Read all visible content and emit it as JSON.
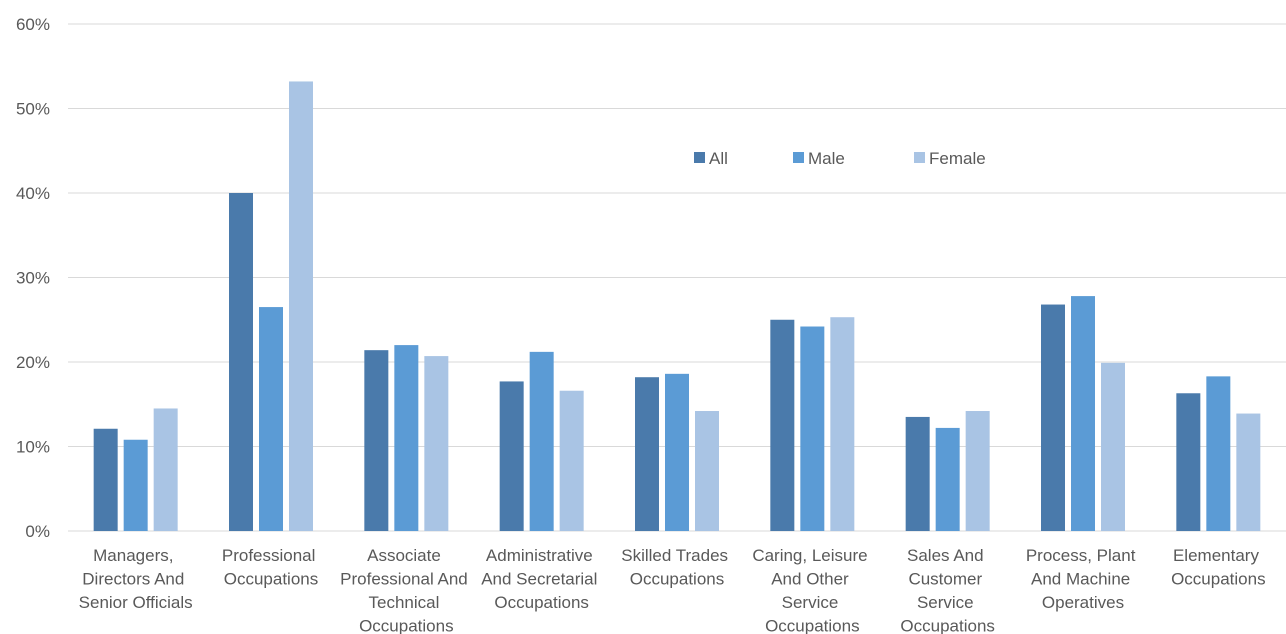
{
  "chart_data": {
    "type": "bar",
    "categories": [
      "Managers, Directors And Senior Officials",
      "Professional Occupations",
      "Associate Professional And Technical Occupations",
      "Administrative And Secretarial Occupations",
      "Skilled Trades Occupations",
      "Caring, Leisure And Other Service Occupations",
      "Sales And Customer Service Occupations",
      "Process, Plant And Machine Operatives",
      "Elementary Occupations"
    ],
    "series": [
      {
        "name": "All",
        "color": "#4a7aab",
        "values": [
          12.1,
          40.0,
          21.4,
          17.7,
          18.2,
          25.0,
          13.5,
          26.8,
          16.3
        ]
      },
      {
        "name": "Male",
        "color": "#5b9bd5",
        "values": [
          10.8,
          26.5,
          22.0,
          21.2,
          18.6,
          24.2,
          12.2,
          27.8,
          18.3
        ]
      },
      {
        "name": "Female",
        "color": "#a9c4e4",
        "values": [
          14.5,
          53.2,
          20.7,
          16.6,
          14.2,
          25.3,
          14.2,
          19.9,
          13.9
        ]
      }
    ],
    "ylim": [
      0,
      60
    ],
    "yticks": [
      {
        "value": 0,
        "label": "0%"
      },
      {
        "value": 10,
        "label": "10%"
      },
      {
        "value": 20,
        "label": "20%"
      },
      {
        "value": 30,
        "label": "30%"
      },
      {
        "value": 40,
        "label": "40%"
      },
      {
        "value": 50,
        "label": "50%"
      },
      {
        "value": 60,
        "label": "60%"
      }
    ],
    "grid": true,
    "legend": "top-center"
  }
}
